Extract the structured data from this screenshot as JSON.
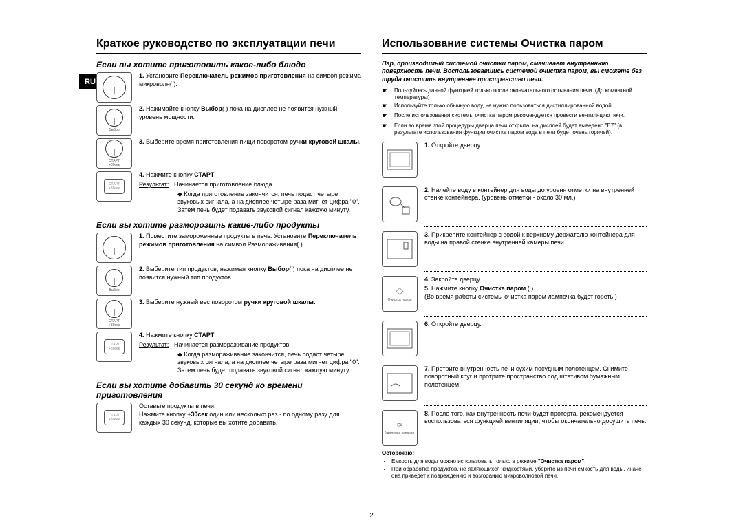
{
  "lang_tab": "RU",
  "page_number": "2",
  "left": {
    "title": "Краткое руководство по эксплуатации печи",
    "section1": {
      "heading": "Если вы хотите приготовить какое-либо блюдо",
      "steps": [
        {
          "n": "1.",
          "text": "Установите <b>Переключатель режимов приготовления</b> на символ режима микроволн( )."
        },
        {
          "n": "2.",
          "text": "Нажимайте кнопку <b>Выбор</b>( ) пока на дисплее не появится нужный уровень мощности."
        },
        {
          "n": "3.",
          "text": "Выберите время приготовления пищи поворотом <b>ручки круговой шкалы.</b>"
        },
        {
          "n": "4.",
          "text": "Нажмите кнопку <b>СТАРТ</b>.",
          "result_label": "Результат:",
          "result": "Начинается приготовление блюда.",
          "extra": "◆ Когда приготовление закончится, печь подаст четыре звуковых сигнала, а на дисплее четыре раза мигнет цифра \"0\". Затем печь будет подавать звуковой сигнал каждую минуту."
        }
      ]
    },
    "section2": {
      "heading": "Если вы хотите разморозить какие-либо продукты",
      "steps": [
        {
          "n": "1.",
          "text": "Поместите замороженные продукты в печь. Установите <b>Переключатель режимов приготовления</b> на символ Размораживания( )."
        },
        {
          "n": "2.",
          "text": "Выберите тип продуктов, нажимая кнопку <b>Выбор</b>( ) пока на дисплее не появится нужный тип продуктов."
        },
        {
          "n": "3.",
          "text": "Выберите нужный вес поворотом <b>ручки круговой шкалы.</b>"
        },
        {
          "n": "4.",
          "text": "Нажмите кнопку <b>СТАРТ</b>",
          "result_label": "Результат:",
          "result": "Начинается размораживание продуктов.",
          "extra": "◆ Когда размораживание закончится, печь подаст четыре звуковых сигнала, а на дисплее четыре раза мигнет цифра \"0\". Затем печь будет подавать звуковой сигнал каждую минуту."
        }
      ]
    },
    "section3": {
      "heading": "Если вы хотите добавить 30 секунд ко времени приготовления",
      "body": "Оставьте продукты в печи.\nНажмите кнопку <b>+30сек</b> один или несколько раз - по одному разу для каждых 30 секунд, которые вы хотите добавить."
    }
  },
  "right": {
    "title": "Использование системы Очистка паром",
    "intro": "Пар, производимый системой очистки паром, смачивает внутреннюю поверхность печи. Воспользовавшись системой очистка паром, вы сможете без труда очистить внутреннее пространство печи.",
    "notes": [
      "Пользуйтесь данной функцией только после окончательного остывания печи. (До комнатной температуры)",
      "Используйте только обычную воду, не нужно пользоваться дистиллированной водой.",
      "После использования системы очистка паром рекомендуется провести вентиляцию печи.",
      "Если во время этой процедуры дверца печи открыта, на дисплей будет выведено \"E7\" (в результате использования функции очистка паром вода в печи будет очень горячей)."
    ],
    "steps": [
      {
        "n": "1.",
        "text": "Откройте дверцу."
      },
      {
        "n": "2.",
        "text": "Налейте воду в контейнер для воды до уровня отметки на внутренней стенке контейнера. (уровень отметки - около 30 мл.)"
      },
      {
        "n": "3.",
        "text": "Прикрепите контейнер с водой к верхнему держателю контейнера для воды на правой стенке внутренней камеры печи."
      },
      {
        "n": "4.",
        "text": "Закройте дверцу."
      },
      {
        "n": "5.",
        "text": "Нажмите кнопку <b>Очистка паром</b> ( ).<br>(Во время работы системы очистка паром лампочка будет гореть.)",
        "icon_label": "Очистка паром"
      },
      {
        "n": "6.",
        "text": "Откройте дверцу."
      },
      {
        "n": "7.",
        "text": "Протрите внутренность печи сухим посудным полотенцем. Снимите поворотный круг и протрите пространство под штативом бумажным полотенцем."
      },
      {
        "n": "8.",
        "text": "После того, как внутренность печи будет протерта, рекомендуется воспользоваться функцией вентиляции, чтобы окончательно досушить печь.",
        "icon_label": "Удаление запахов"
      }
    ],
    "caution_label": "Осторожно!",
    "caution": [
      "Емкость для воды можно использовать только в режиме <b>\"Очистка паром\"</b>.",
      "При обработке продуктов, не являющихся жидкостями, уберите из печи емкость для воды, иначе она приведет к повреждению и возгоранию микроволновой печи."
    ]
  },
  "colors": {
    "text": "#000000",
    "bg": "#ffffff"
  }
}
